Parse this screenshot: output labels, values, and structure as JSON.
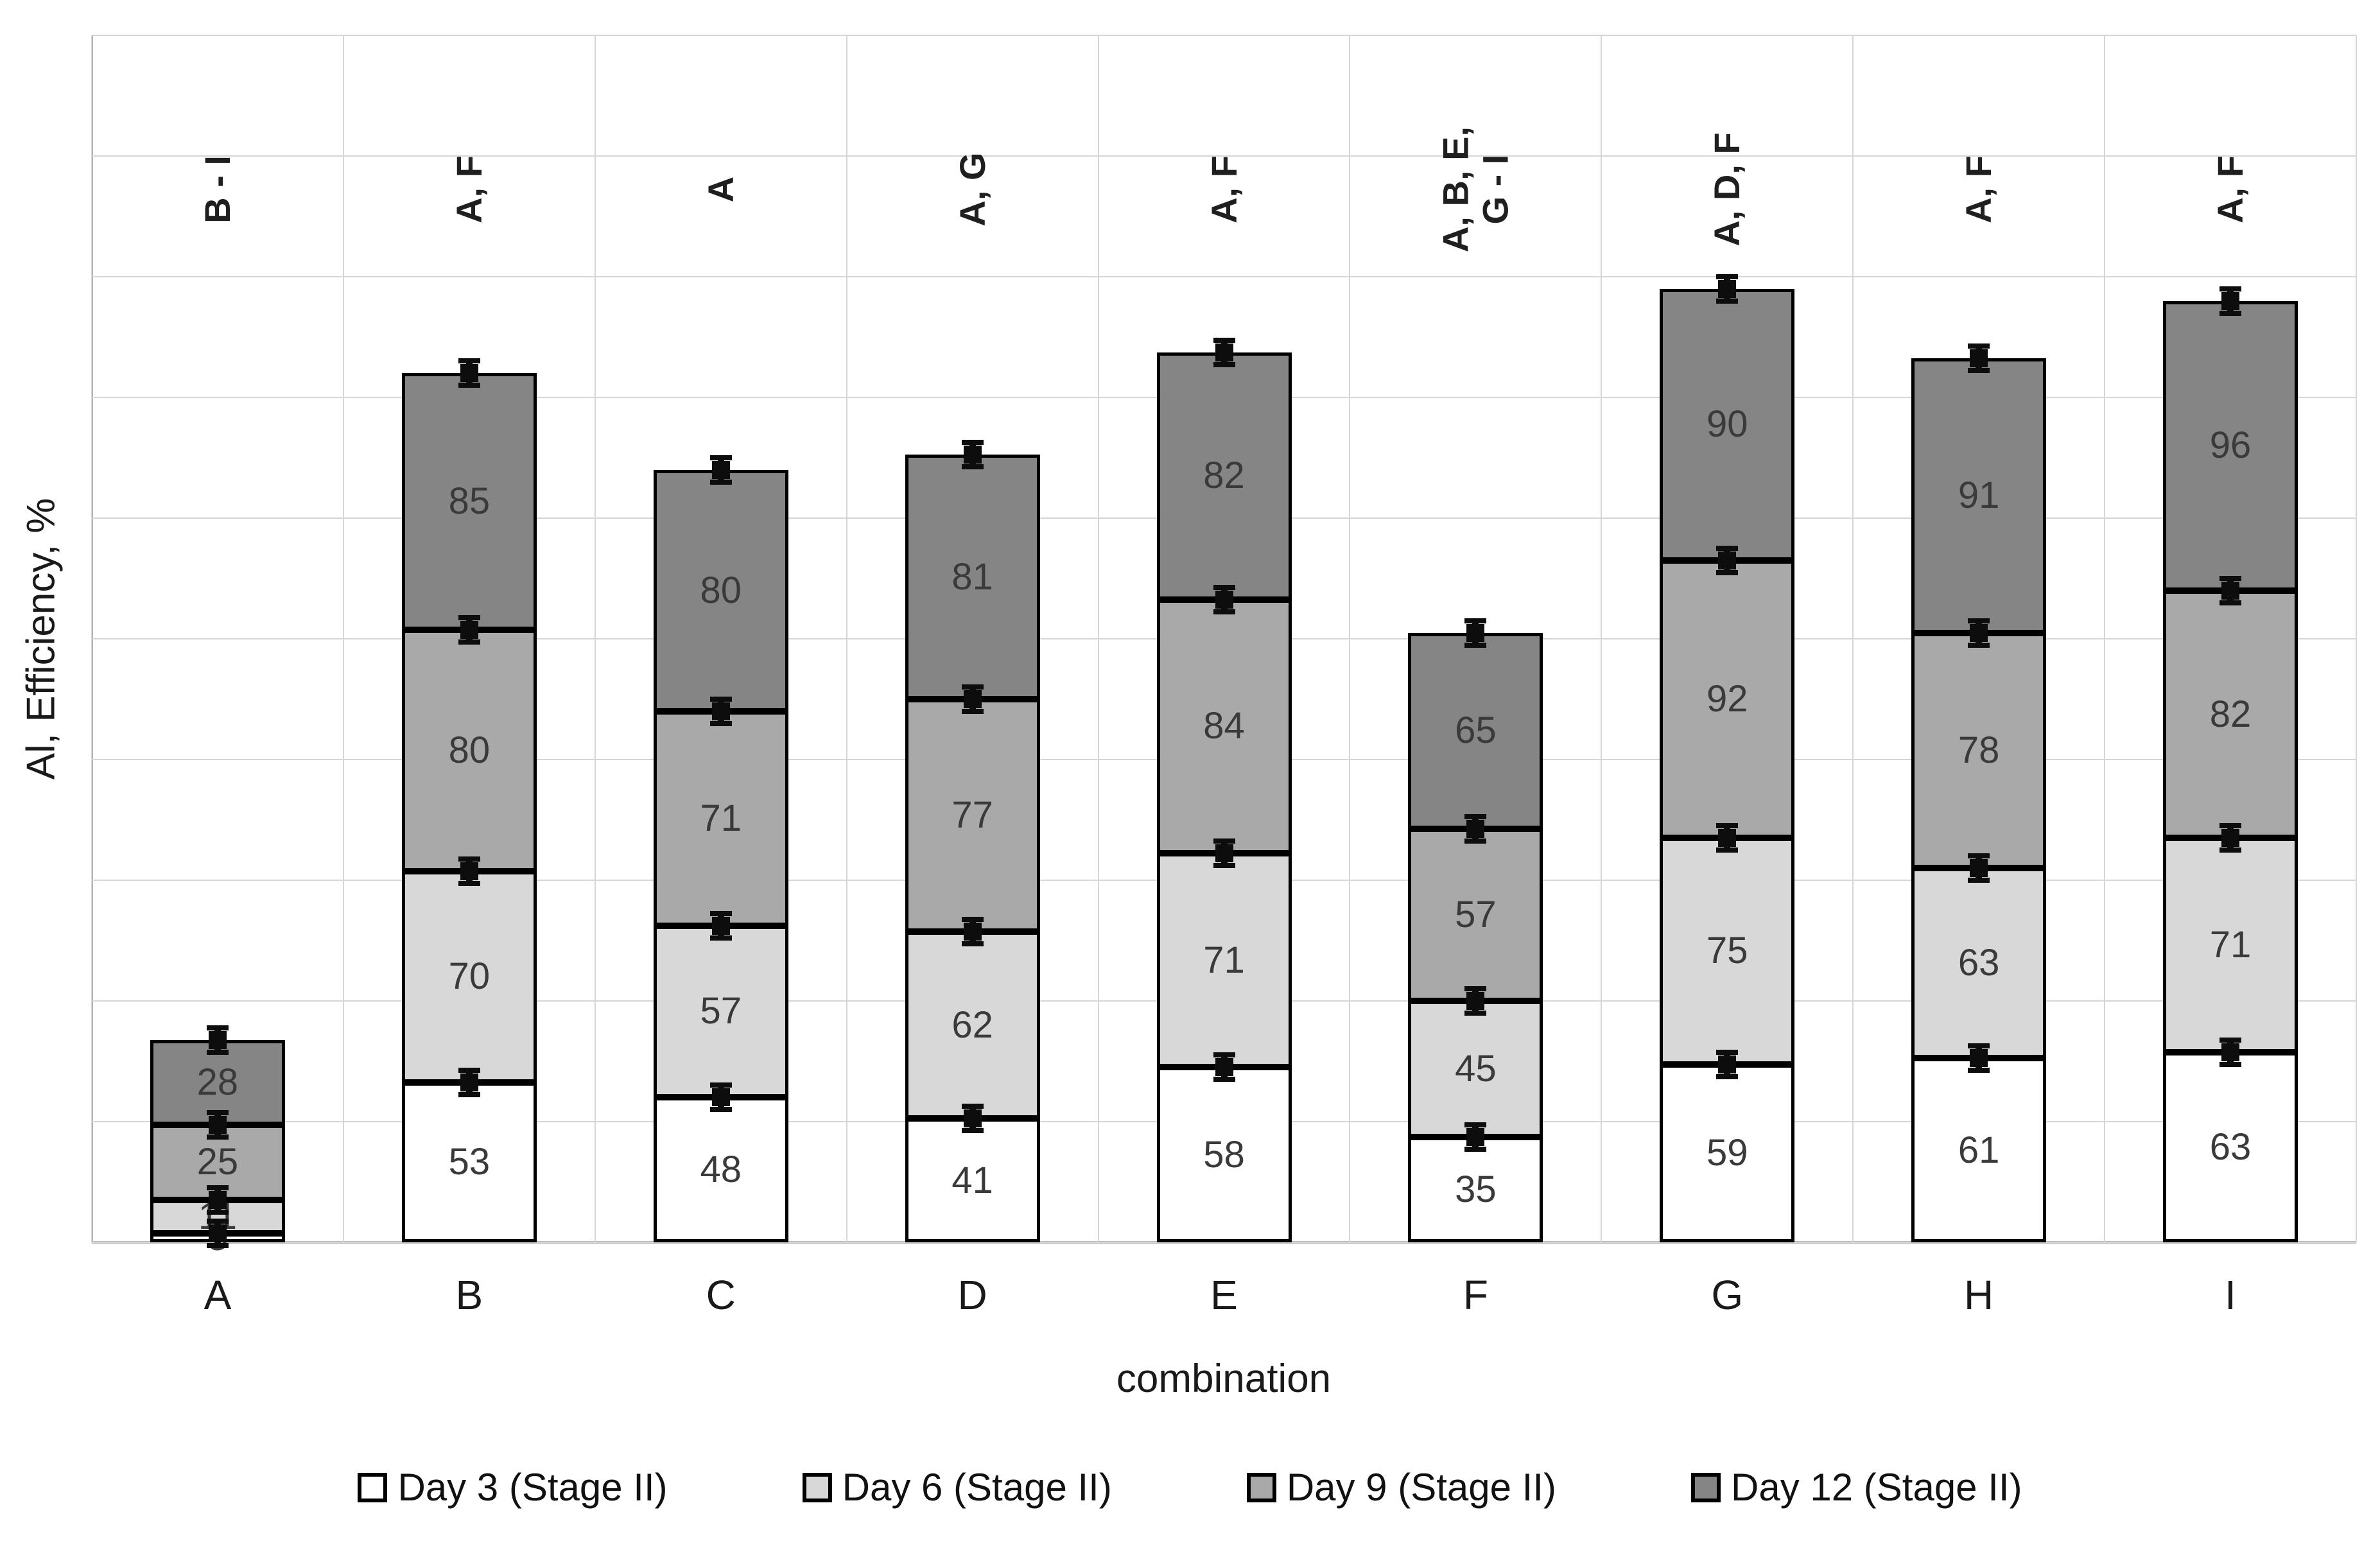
{
  "chart_data": {
    "type": "bar",
    "stacked": true,
    "xlabel": "combination",
    "ylabel": "Al, Efficiency, %",
    "categories": [
      "A",
      "B",
      "C",
      "D",
      "E",
      "F",
      "G",
      "H",
      "I"
    ],
    "series": [
      {
        "name": "Day 3 (Stage II)",
        "color": "#ffffff",
        "values": [
          3,
          53,
          48,
          41,
          58,
          35,
          59,
          61,
          63
        ]
      },
      {
        "name": "Day 6 (Stage II)",
        "color": "#d8d8d8",
        "values": [
          11,
          70,
          57,
          62,
          71,
          45,
          75,
          63,
          71
        ]
      },
      {
        "name": "Day 9 (Stage II)",
        "color": "#a9a9a9",
        "values": [
          25,
          80,
          71,
          77,
          84,
          57,
          92,
          78,
          82
        ]
      },
      {
        "name": "Day 12 (Stage II)",
        "color": "#858585",
        "values": [
          28,
          85,
          80,
          81,
          82,
          65,
          90,
          91,
          96
        ]
      }
    ],
    "annotations": [
      "B - I",
      "A, F",
      "A",
      "A, G",
      "A, F",
      "A, B, E,\nG - I",
      "A, D, F",
      "A, F",
      "A, F"
    ],
    "error_bars": true,
    "ylim": [
      0,
      400
    ],
    "grid_intervals": 10,
    "y_tick_labels_visible": false,
    "legend_position": "bottom",
    "colors": {
      "segment_border": "#000000",
      "gridline": "#d6d6d6",
      "error_bar": "#0d0d0d"
    }
  }
}
